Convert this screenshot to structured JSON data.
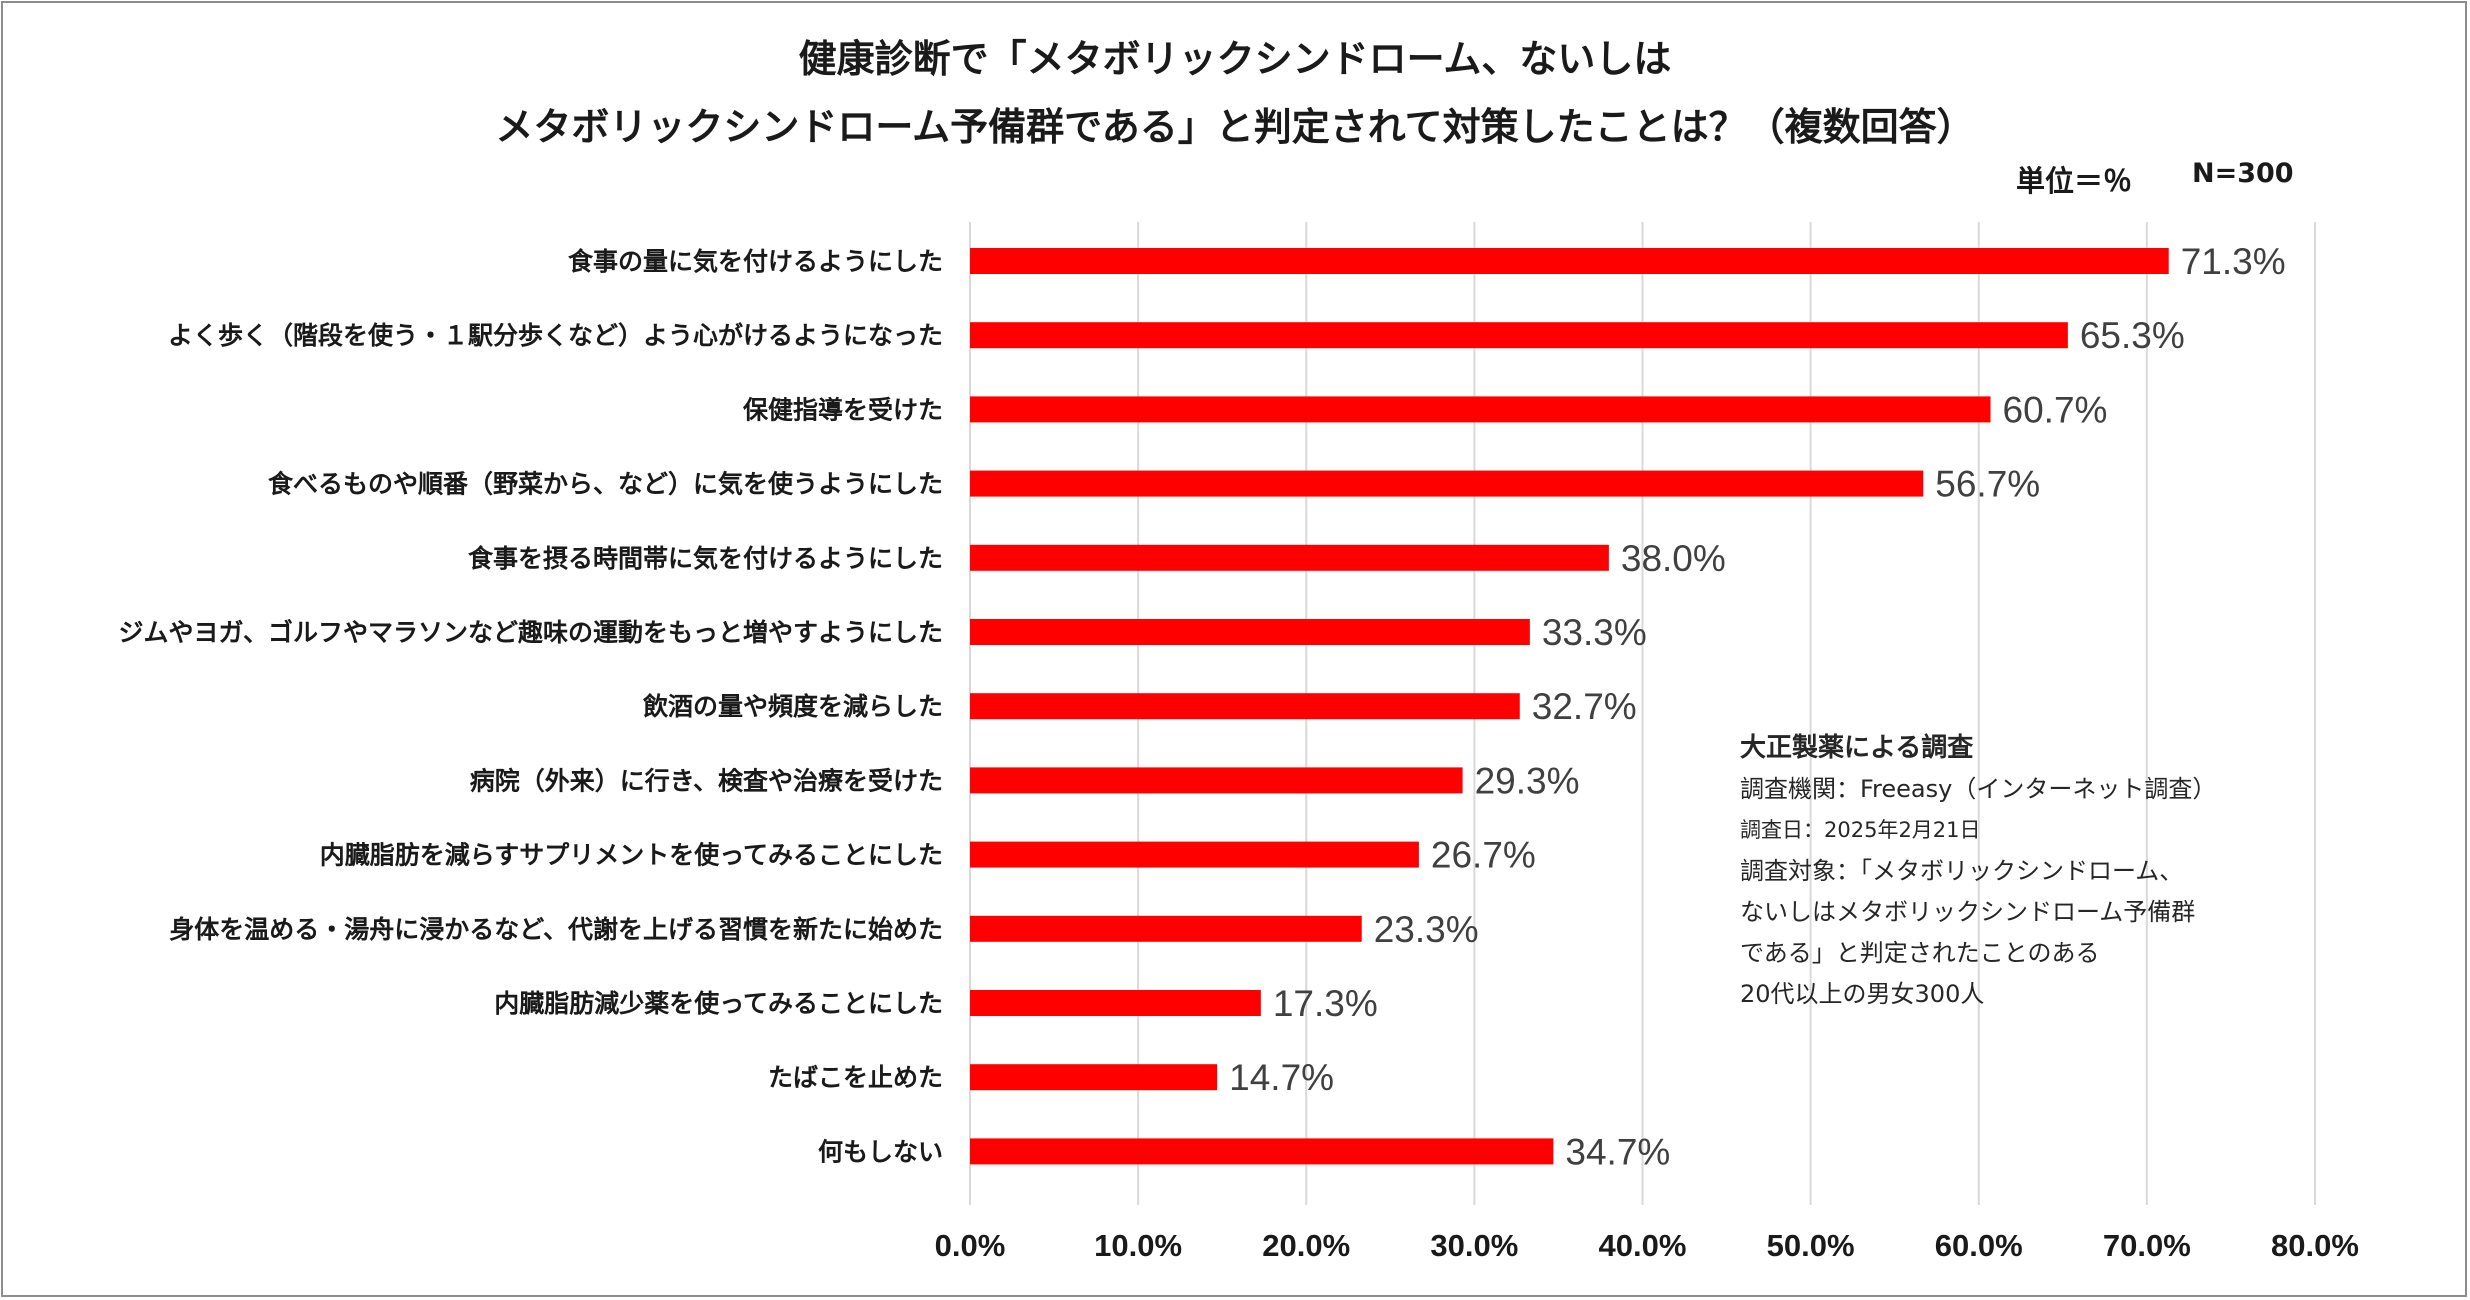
{
  "chart_data": {
    "type": "bar",
    "orientation": "horizontal",
    "title_lines": [
      "健康診断で「メタボリックシンドローム、ないしは",
      "メタボリックシンドローム予備群である」と判定されて対策したことは？（複数回答）"
    ],
    "unit_label": "単位＝％",
    "n_label": "N=300",
    "categories": [
      "食事の量に気を付けるようにした",
      "よく歩く（階段を使う・１駅分歩くなど）よう心がけるようになった",
      "保健指導を受けた",
      "食べるものや順番（野菜から、など）に気を使うようにした",
      "食事を摂る時間帯に気を付けるようにした",
      "ジムやヨガ、ゴルフやマラソンなど趣味の運動をもっと増やすようにした",
      "飲酒の量や頻度を減らした",
      "病院（外来）に行き、検査や治療を受けた",
      "内臓脂肪を減らすサプリメントを使ってみることにした",
      "身体を温める・湯舟に浸かるなど、代謝を上げる習慣を新たに始めた",
      "内臓脂肪減少薬を使ってみることにした",
      "たばこを止めた",
      "何もしない"
    ],
    "values": [
      71.3,
      65.3,
      60.7,
      56.7,
      38.0,
      33.3,
      32.7,
      29.3,
      26.7,
      23.3,
      17.3,
      14.7,
      34.7
    ],
    "value_labels": [
      "71.3%",
      "65.3%",
      "60.7%",
      "56.7%",
      "38.0%",
      "33.3%",
      "32.7%",
      "29.3%",
      "26.7%",
      "23.3%",
      "17.3%",
      "14.7%",
      "34.7%"
    ],
    "xlim": [
      0,
      80
    ],
    "x_ticks": [
      "0.0%",
      "10.0%",
      "20.0%",
      "30.0%",
      "40.0%",
      "50.0%",
      "60.0%",
      "70.0%",
      "80.0%"
    ],
    "grid": true,
    "bar_color": "#ff0000",
    "grid_color": "#d9d9d9"
  },
  "note": {
    "heading": "大正製薬による調査",
    "lines": [
      "調査機関：Freeasy（インターネット調査）",
      "調査日：2025年2月21日",
      "調査対象：「メタボリックシンドローム、",
      "ないしはメタボリックシンドローム予備群",
      "である」と判定されたことのある",
      "20代以上の男女300人"
    ]
  }
}
